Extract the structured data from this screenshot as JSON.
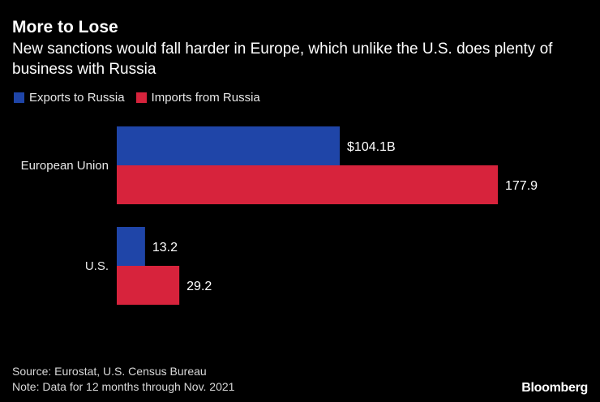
{
  "header": {
    "title": "More to Lose",
    "subtitle": "New sanctions would fall harder in Europe, which unlike the U.S. does plenty of business with Russia"
  },
  "colors": {
    "background": "#000000",
    "exports": "#1f45a8",
    "imports": "#d7233c"
  },
  "chart_data": {
    "type": "bar",
    "orientation": "horizontal",
    "categories": [
      "European Union",
      "U.S."
    ],
    "series": [
      {
        "name": "Exports to Russia",
        "values": [
          104.1,
          13.2
        ],
        "labels": [
          "$104.1B",
          "13.2"
        ]
      },
      {
        "name": "Imports from Russia",
        "values": [
          177.9,
          29.2
        ],
        "labels": [
          "177.9",
          "29.2"
        ]
      }
    ],
    "title": "More to Lose",
    "xlabel": "",
    "ylabel": "",
    "unit": "billions USD",
    "xlim": [
      0,
      200
    ],
    "grid": false,
    "legend": "top-left"
  },
  "footer": {
    "source": "Source: Eurostat, U.S. Census Bureau",
    "note": "Note: Data for 12 months through Nov. 2021",
    "brand": "Bloomberg"
  }
}
